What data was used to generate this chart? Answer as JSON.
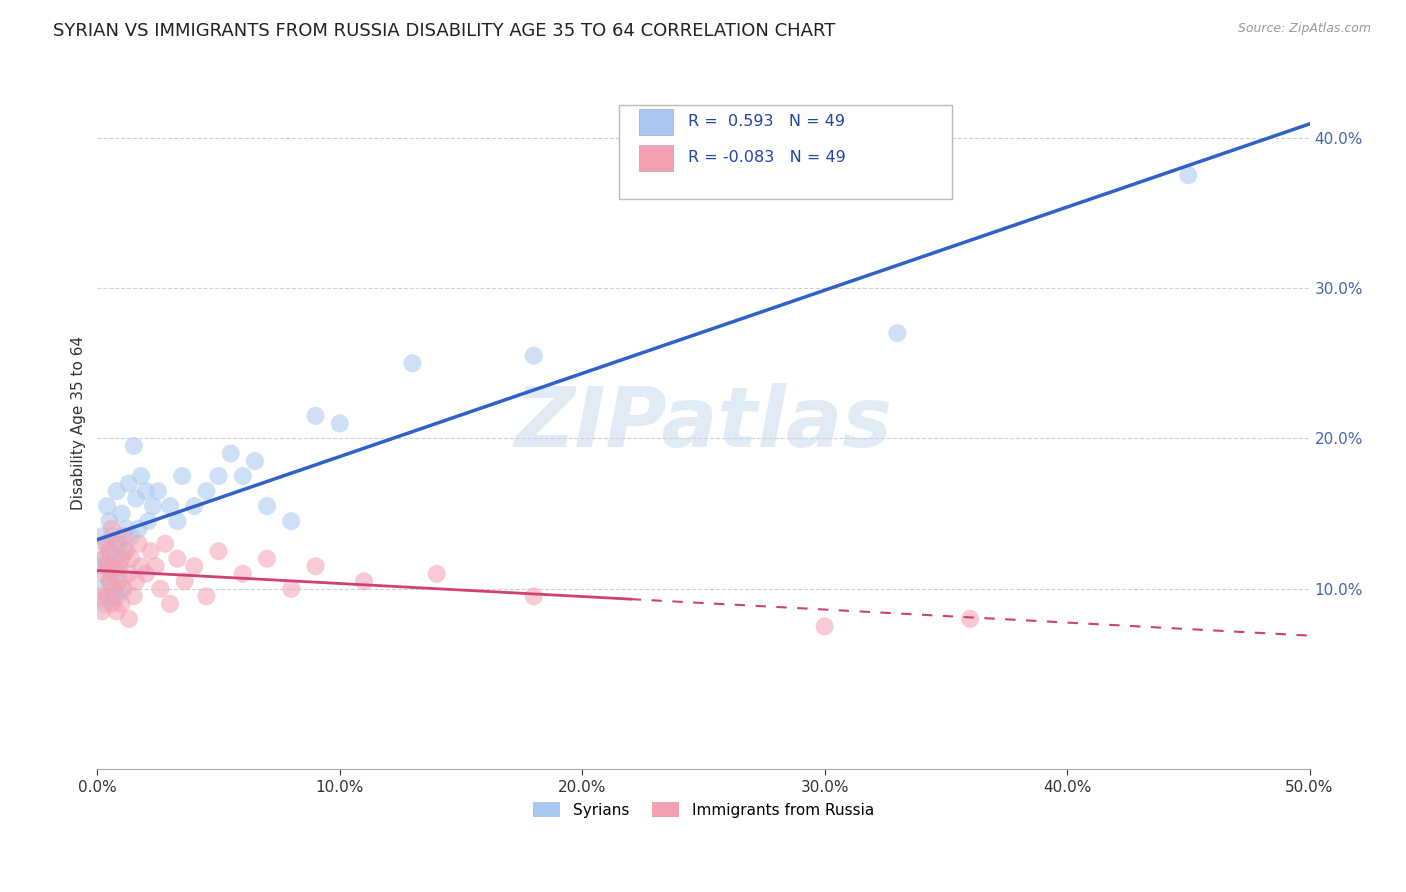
{
  "title": "SYRIAN VS IMMIGRANTS FROM RUSSIA DISABILITY AGE 35 TO 64 CORRELATION CHART",
  "source": "Source: ZipAtlas.com",
  "ylabel_label": "Disability Age 35 to 64",
  "xlim": [
    0.0,
    0.5
  ],
  "ylim": [
    -0.02,
    0.44
  ],
  "xtick_labels": [
    "0.0%",
    "10.0%",
    "20.0%",
    "30.0%",
    "40.0%",
    "50.0%"
  ],
  "xtick_vals": [
    0.0,
    0.1,
    0.2,
    0.3,
    0.4,
    0.5
  ],
  "ytick_labels": [
    "10.0%",
    "20.0%",
    "30.0%",
    "40.0%"
  ],
  "ytick_vals": [
    0.1,
    0.2,
    0.3,
    0.4
  ],
  "watermark": "ZIPatlas",
  "legend_R1": "0.593",
  "legend_R2": "-0.083",
  "legend_N1": "49",
  "legend_N2": "49",
  "color_syrian": "#a8c8f0",
  "color_russia": "#f4a0b0",
  "color_line_syrian": "#3060c8",
  "color_line_russia": "#d04070",
  "legend_label1": "Syrians",
  "legend_label2": "Immigrants from Russia",
  "syrians_x": [
    0.001,
    0.002,
    0.002,
    0.003,
    0.003,
    0.004,
    0.004,
    0.005,
    0.005,
    0.005,
    0.006,
    0.006,
    0.007,
    0.007,
    0.008,
    0.008,
    0.009,
    0.009,
    0.01,
    0.01,
    0.011,
    0.012,
    0.013,
    0.014,
    0.015,
    0.016,
    0.017,
    0.018,
    0.02,
    0.021,
    0.023,
    0.025,
    0.03,
    0.033,
    0.035,
    0.04,
    0.045,
    0.05,
    0.055,
    0.06,
    0.065,
    0.07,
    0.08,
    0.09,
    0.1,
    0.13,
    0.18,
    0.33,
    0.45
  ],
  "syrians_y": [
    0.1,
    0.135,
    0.115,
    0.09,
    0.12,
    0.155,
    0.13,
    0.105,
    0.125,
    0.145,
    0.11,
    0.135,
    0.095,
    0.12,
    0.165,
    0.095,
    0.13,
    0.11,
    0.15,
    0.1,
    0.125,
    0.14,
    0.17,
    0.135,
    0.195,
    0.16,
    0.14,
    0.175,
    0.165,
    0.145,
    0.155,
    0.165,
    0.155,
    0.145,
    0.175,
    0.155,
    0.165,
    0.175,
    0.19,
    0.175,
    0.185,
    0.155,
    0.145,
    0.215,
    0.21,
    0.25,
    0.255,
    0.27,
    0.375
  ],
  "russia_x": [
    0.001,
    0.002,
    0.002,
    0.003,
    0.003,
    0.004,
    0.004,
    0.005,
    0.005,
    0.006,
    0.006,
    0.007,
    0.007,
    0.008,
    0.008,
    0.009,
    0.009,
    0.01,
    0.01,
    0.011,
    0.011,
    0.012,
    0.013,
    0.013,
    0.014,
    0.015,
    0.016,
    0.017,
    0.018,
    0.02,
    0.022,
    0.024,
    0.026,
    0.028,
    0.03,
    0.033,
    0.036,
    0.04,
    0.045,
    0.05,
    0.06,
    0.07,
    0.08,
    0.09,
    0.11,
    0.14,
    0.18,
    0.3,
    0.36
  ],
  "russia_y": [
    0.095,
    0.12,
    0.085,
    0.11,
    0.13,
    0.095,
    0.115,
    0.105,
    0.125,
    0.09,
    0.14,
    0.115,
    0.1,
    0.13,
    0.085,
    0.115,
    0.105,
    0.09,
    0.12,
    0.135,
    0.1,
    0.125,
    0.11,
    0.08,
    0.12,
    0.095,
    0.105,
    0.13,
    0.115,
    0.11,
    0.125,
    0.115,
    0.1,
    0.13,
    0.09,
    0.12,
    0.105,
    0.115,
    0.095,
    0.125,
    0.11,
    0.12,
    0.1,
    0.115,
    0.105,
    0.11,
    0.095,
    0.075,
    0.08
  ],
  "background_color": "#ffffff",
  "grid_color": "#cccccc",
  "title_color": "#222222",
  "axis_color": "#4466aa",
  "tick_color": "#4466aa",
  "title_fontsize": 13,
  "label_fontsize": 11,
  "tick_fontsize": 11,
  "marker_size": 13,
  "marker_alpha": 0.55
}
